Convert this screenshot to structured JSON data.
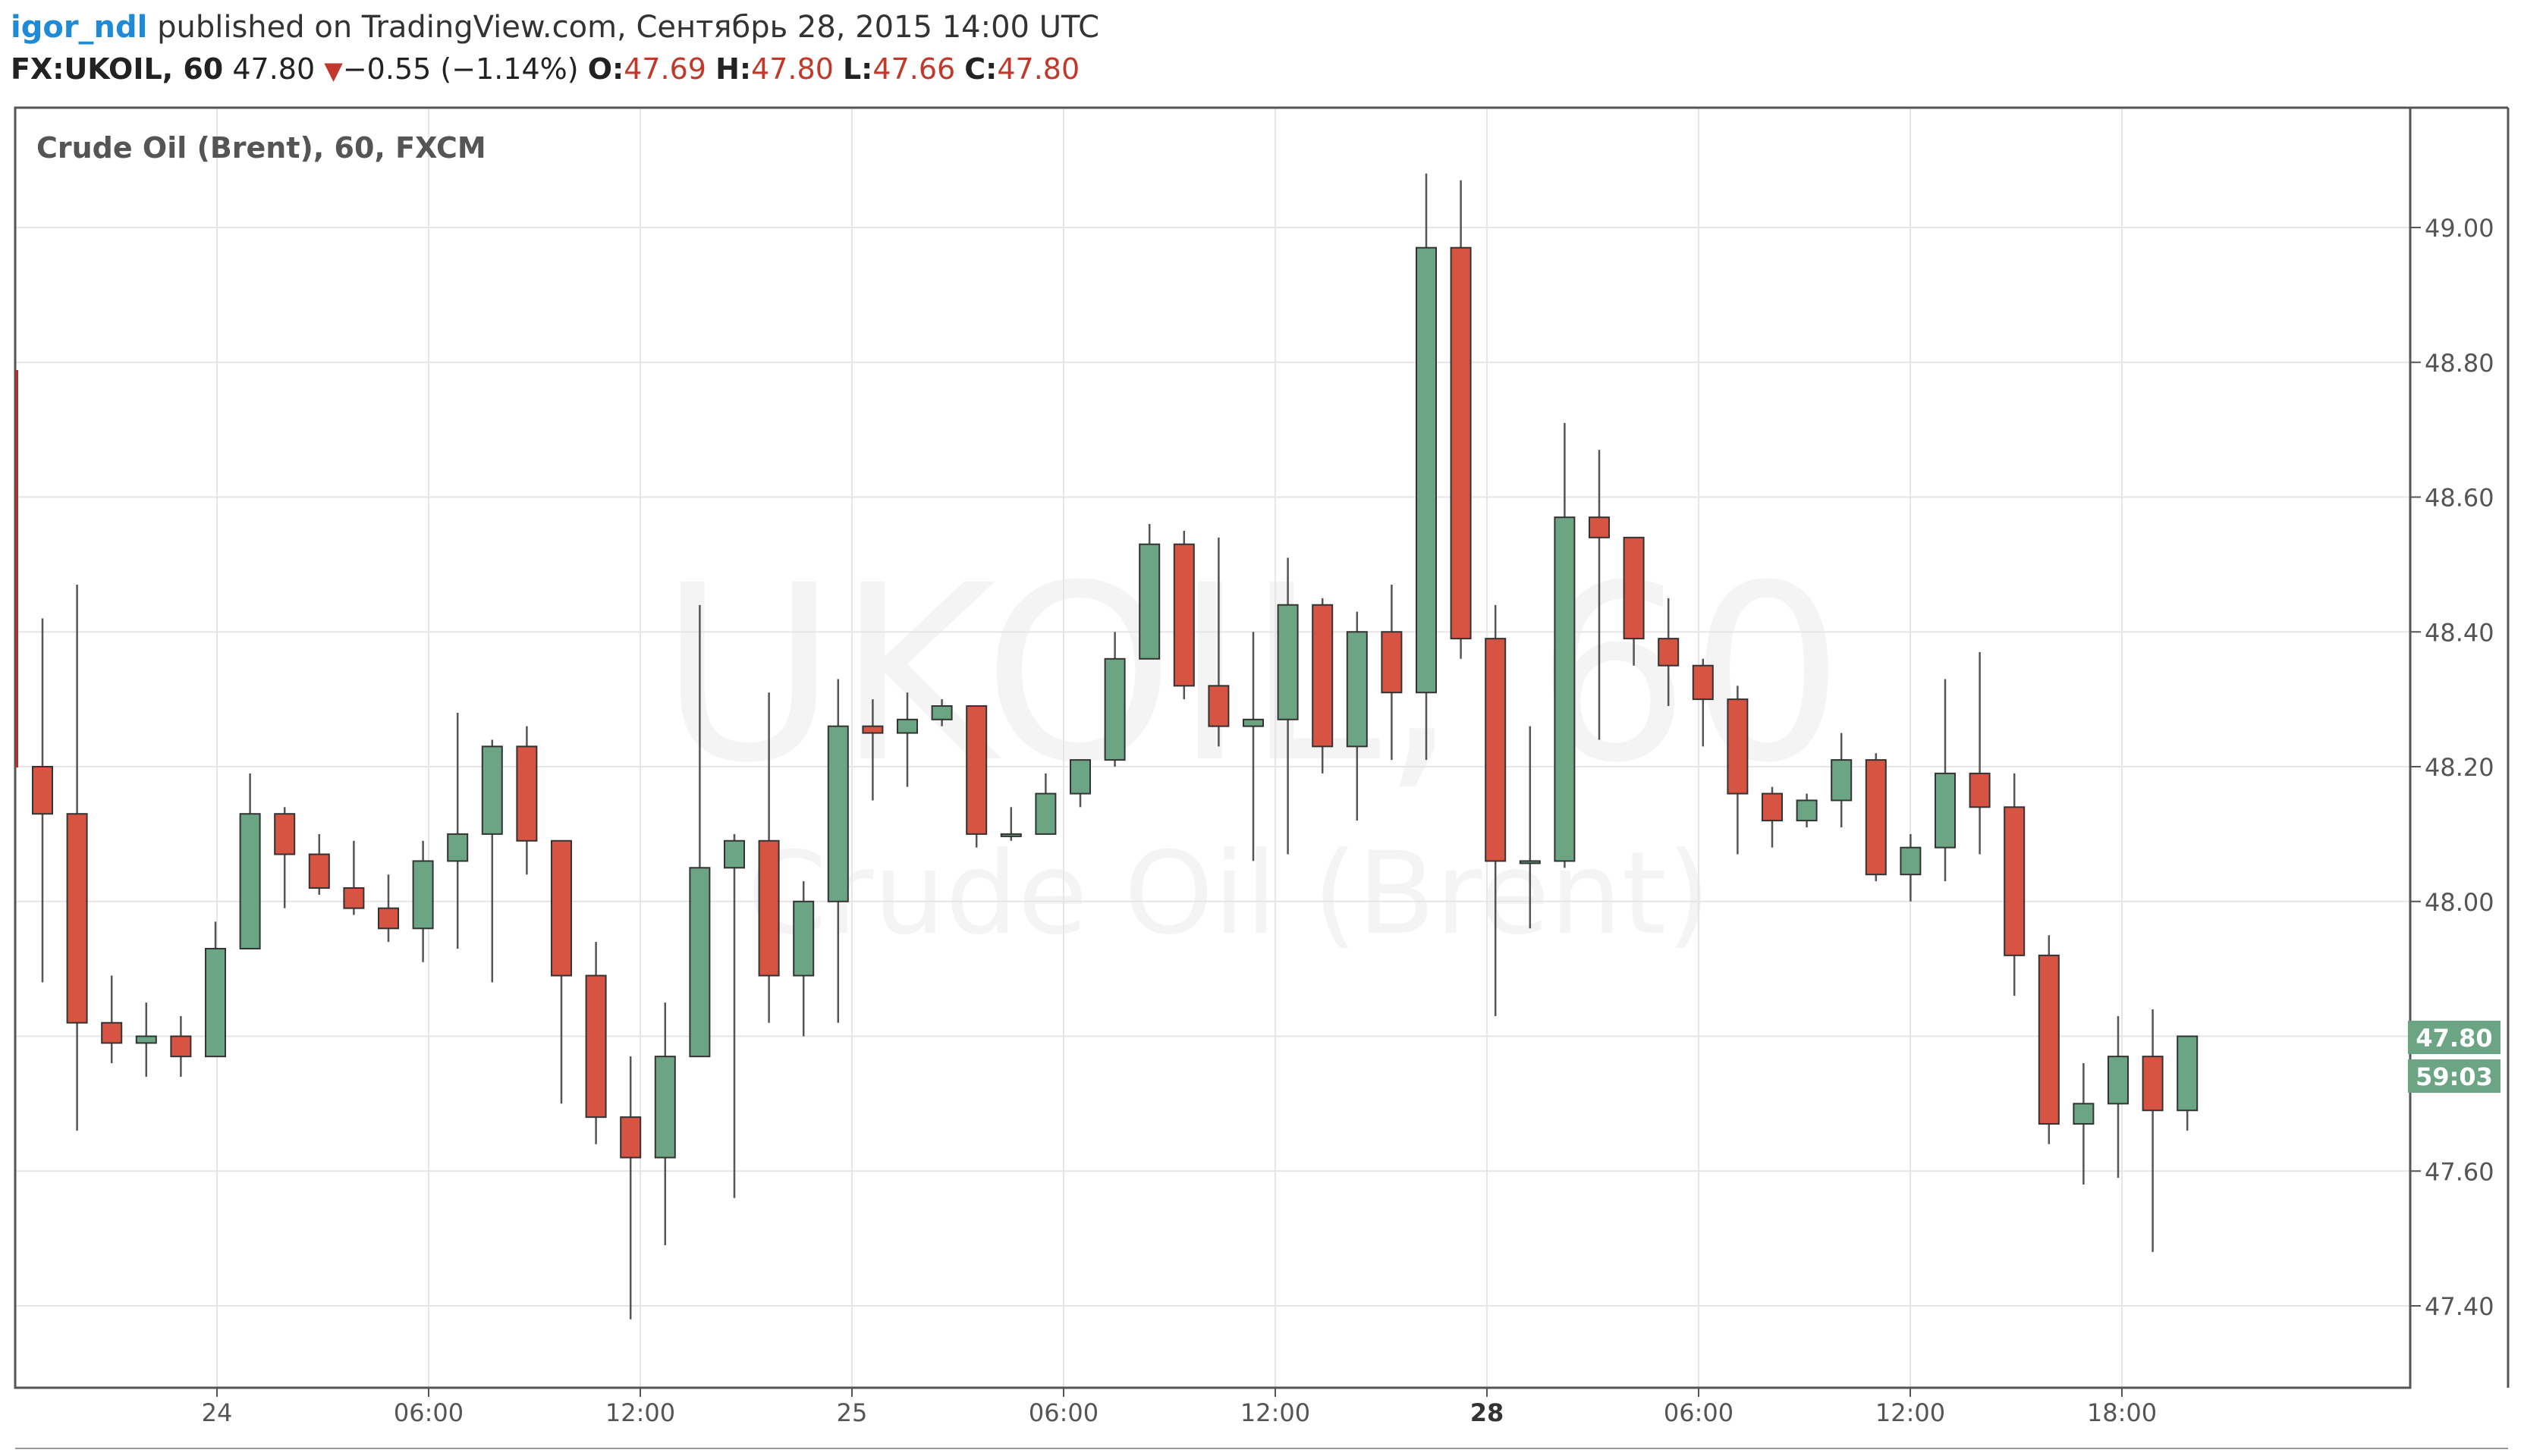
{
  "header": {
    "user": "igor_ndl",
    "published_text": " published on TradingView.com, Сентябрь 28, 2015 14:00 UTC",
    "symbol": "FX:UKOIL, 60",
    "last": "47.80",
    "change": "−0.55 (−1.14%)",
    "o_label": "O:",
    "o_value": "47.69",
    "h_label": "H:",
    "h_value": "47.80",
    "l_label": "L:",
    "l_value": "47.66",
    "c_label": "C:",
    "c_value": "47.80"
  },
  "chart_data": {
    "type": "candlestick",
    "title": "Crude Oil (Brent), 60, FXCM",
    "watermark": {
      "symbol": "UKOIL, 60",
      "name": "Crude Oil (Brent)"
    },
    "ylim": [
      47.28,
      49.2
    ],
    "yticks": [
      "49.00",
      "48.80",
      "48.60",
      "48.40",
      "48.20",
      "48.00",
      "47.80",
      "47.60",
      "47.40"
    ],
    "xticks": [
      "24",
      "06:00",
      "12:00",
      "25",
      "06:00",
      "12:00",
      "28",
      "06:00",
      "12:00",
      "18:00"
    ],
    "xticks_bold": [
      "28"
    ],
    "last_price_label": "47.80",
    "countdown_label": "59:03",
    "colors": {
      "up": "#6ba583",
      "down": "#d75442",
      "wick": "#555555",
      "last_label_bg": "#6ba583"
    },
    "grid": true,
    "candles": [
      [
        48.2,
        48.42,
        47.88,
        48.13
      ],
      [
        48.13,
        48.47,
        47.66,
        47.82
      ],
      [
        47.82,
        47.89,
        47.76,
        47.79
      ],
      [
        47.79,
        47.85,
        47.74,
        47.8
      ],
      [
        47.8,
        47.83,
        47.74,
        47.77
      ],
      [
        47.77,
        47.97,
        47.77,
        47.93
      ],
      [
        47.93,
        48.19,
        47.93,
        48.13
      ],
      [
        48.13,
        48.14,
        47.99,
        48.07
      ],
      [
        48.07,
        48.1,
        48.01,
        48.02
      ],
      [
        48.02,
        48.09,
        47.98,
        47.99
      ],
      [
        47.99,
        48.04,
        47.94,
        47.96
      ],
      [
        47.96,
        48.09,
        47.91,
        48.06
      ],
      [
        48.06,
        48.28,
        47.93,
        48.1
      ],
      [
        48.1,
        48.24,
        47.88,
        48.23
      ],
      [
        48.23,
        48.26,
        48.04,
        48.09
      ],
      [
        48.09,
        48.09,
        47.7,
        47.89
      ],
      [
        47.89,
        47.94,
        47.64,
        47.68
      ],
      [
        47.68,
        47.77,
        47.38,
        47.62
      ],
      [
        47.62,
        47.85,
        47.49,
        47.77
      ],
      [
        47.77,
        48.44,
        47.77,
        48.05
      ],
      [
        48.05,
        48.1,
        47.56,
        48.09
      ],
      [
        48.09,
        48.31,
        47.82,
        47.89
      ],
      [
        47.89,
        48.03,
        47.8,
        48.0
      ],
      [
        48.0,
        48.33,
        47.82,
        48.26
      ],
      [
        48.26,
        48.3,
        48.15,
        48.25
      ],
      [
        48.25,
        48.31,
        48.17,
        48.27
      ],
      [
        48.27,
        48.3,
        48.26,
        48.29
      ],
      [
        48.29,
        48.29,
        48.08,
        48.1
      ],
      [
        48.1,
        48.14,
        48.09,
        48.1
      ],
      [
        48.1,
        48.19,
        48.1,
        48.16
      ],
      [
        48.16,
        48.21,
        48.14,
        48.21
      ],
      [
        48.21,
        48.4,
        48.2,
        48.36
      ],
      [
        48.36,
        48.56,
        48.36,
        48.53
      ],
      [
        48.53,
        48.55,
        48.3,
        48.32
      ],
      [
        48.32,
        48.54,
        48.23,
        48.26
      ],
      [
        48.26,
        48.4,
        48.06,
        48.27
      ],
      [
        48.27,
        48.51,
        48.07,
        48.44
      ],
      [
        48.44,
        48.45,
        48.19,
        48.23
      ],
      [
        48.23,
        48.43,
        48.12,
        48.4
      ],
      [
        48.4,
        48.47,
        48.21,
        48.31
      ],
      [
        48.31,
        49.08,
        48.21,
        48.97
      ],
      [
        48.97,
        49.07,
        48.36,
        48.39
      ],
      [
        48.39,
        48.44,
        47.83,
        48.06
      ],
      [
        48.06,
        48.26,
        47.96,
        48.06
      ],
      [
        48.06,
        48.71,
        48.05,
        48.57
      ],
      [
        48.57,
        48.67,
        48.24,
        48.54
      ],
      [
        48.54,
        48.54,
        48.35,
        48.39
      ],
      [
        48.39,
        48.45,
        48.29,
        48.35
      ],
      [
        48.35,
        48.36,
        48.23,
        48.3
      ],
      [
        48.3,
        48.32,
        48.07,
        48.16
      ],
      [
        48.16,
        48.17,
        48.08,
        48.12
      ],
      [
        48.12,
        48.16,
        48.11,
        48.15
      ],
      [
        48.15,
        48.25,
        48.11,
        48.21
      ],
      [
        48.21,
        48.22,
        48.03,
        48.04
      ],
      [
        48.04,
        48.1,
        48.0,
        48.08
      ],
      [
        48.08,
        48.33,
        48.03,
        48.19
      ],
      [
        48.19,
        48.37,
        48.07,
        48.14
      ],
      [
        48.14,
        48.19,
        47.86,
        47.92
      ],
      [
        47.92,
        47.95,
        47.64,
        47.67
      ],
      [
        47.67,
        47.76,
        47.58,
        47.7
      ],
      [
        47.7,
        47.83,
        47.59,
        47.77
      ],
      [
        47.77,
        47.84,
        47.48,
        47.69
      ],
      [
        47.69,
        47.8,
        47.66,
        47.8
      ]
    ]
  }
}
